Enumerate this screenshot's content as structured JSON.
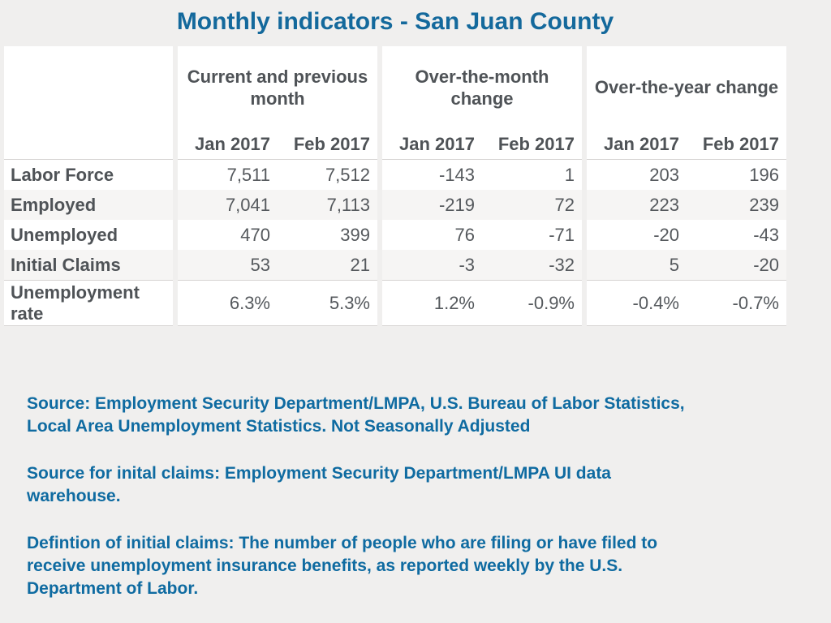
{
  "page": {
    "title": "Monthly indicators - San Juan County",
    "accent_color": "#14699c",
    "note_color": "#0f6ba1",
    "background": "#f0efee"
  },
  "table": {
    "groups": [
      {
        "label": "Current and previous month"
      },
      {
        "label": "Over-the-month change"
      },
      {
        "label": "Over-the-year change"
      }
    ],
    "sub_headers": [
      "Jan 2017",
      "Feb 2017",
      "Jan 2017",
      "Feb 2017",
      "Jan 2017",
      "Feb 2017"
    ],
    "rows": [
      {
        "label": "Labor Force",
        "values": [
          "7,511",
          "7,512",
          "-143",
          "1",
          "203",
          "196"
        ]
      },
      {
        "label": "Employed",
        "values": [
          "7,041",
          "7,113",
          "-219",
          "72",
          "223",
          "239"
        ]
      },
      {
        "label": "Unemployed",
        "values": [
          "470",
          "399",
          "76",
          "-71",
          "-20",
          "-43"
        ]
      },
      {
        "label": "Initial Claims",
        "values": [
          "53",
          "21",
          "-3",
          "-32",
          "5",
          "-20"
        ]
      },
      {
        "label": "Unemployment rate",
        "values": [
          "6.3%",
          "5.3%",
          "1.2%",
          "-0.9%",
          "-0.4%",
          "-0.7%"
        ]
      }
    ]
  },
  "notes": [
    {
      "lines": [
        "Source: Employment Security Department/LMPA, U.S. Bureau of Labor Statistics,",
        "Local Area Unemployment Statistics.  Not Seasonally Adjusted"
      ]
    },
    {
      "lines": [
        "Source for inital claims:  Employment Security Department/LMPA UI data",
        "warehouse."
      ]
    },
    {
      "lines": [
        "Defintion of initial claims:  The number of people who are filing or have filed to",
        "receive unemployment insurance benefits, as reported weekly by the U.S.",
        "Department of Labor."
      ]
    }
  ]
}
